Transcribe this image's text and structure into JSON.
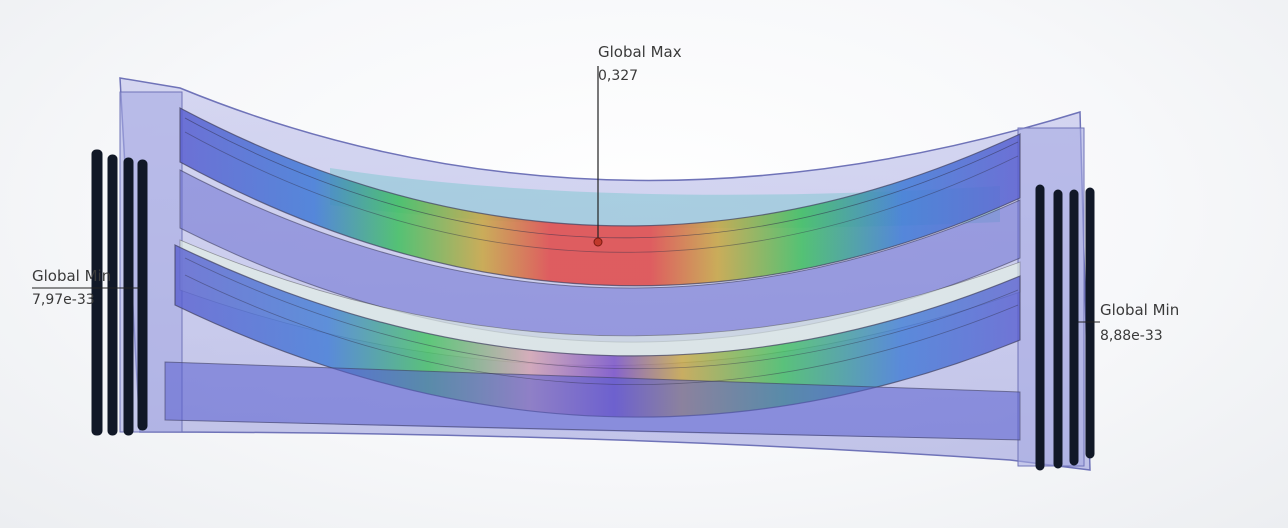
{
  "probes": {
    "global_max": {
      "label": "Global Max",
      "value": "0,327"
    },
    "global_min_left": {
      "label": "Global Min",
      "value": "7,97e-33"
    },
    "global_min_right": {
      "label": "Global Min",
      "value": "8,88e-33"
    }
  },
  "colors": {
    "frame": "#8a8fd6",
    "low": "#5a5fd0",
    "mid": "#3fbf5f",
    "high": "#e05050",
    "leader_line": "#222222",
    "fixture_marker": "#111827",
    "text": "#3a3a3a"
  },
  "fixtures": {
    "left_side": "fixed",
    "right_side": "fixed"
  }
}
